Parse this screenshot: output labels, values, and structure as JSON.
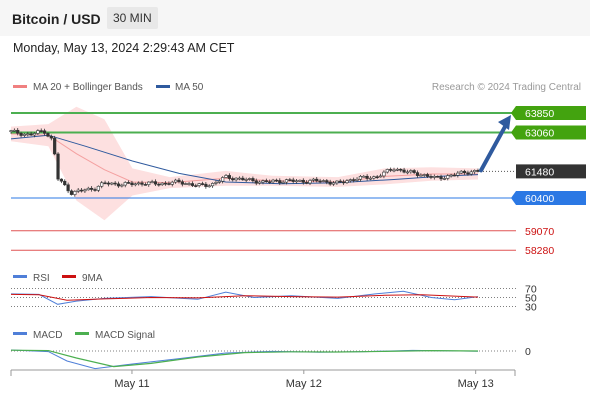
{
  "header": {
    "title": "Bitcoin / USD",
    "interval": "30 MIN",
    "datetime": "Monday, May 13, 2024 2:29:43 AM CET"
  },
  "legend": {
    "items": [
      {
        "label": "MA 20 + Bollinger Bands",
        "color": "#f08080"
      },
      {
        "label": "MA 50",
        "color": "#2f5a9e"
      }
    ],
    "credit": "Research © 2024 Trading Central"
  },
  "colors": {
    "green_level": "#4caf50",
    "green_label": "#43a30f",
    "blue_level": "#2b78e4",
    "red_level": "#e05555",
    "red_text": "#cc1111",
    "price_line": "#333333",
    "ma50": "#2f5a9e",
    "bollinger_fill": "#fde0e0",
    "arrow": "#2f5a9e",
    "rsi": "#4f7fd8",
    "rsi_ma": "#cc1111",
    "macd": "#4f7fd8",
    "macd_signal": "#4caf50"
  },
  "chart_data": [
    {
      "type": "candlestick",
      "title": "Bitcoin / USD",
      "interval": "30 MIN",
      "x_tick_labels": [
        "May 11",
        "May 12",
        "May 13"
      ],
      "ylim": [
        57000,
        65500
      ],
      "levels": [
        {
          "value": 63850,
          "label": "63850",
          "kind": "resistance",
          "color": "green"
        },
        {
          "value": 63060,
          "label": "63060",
          "kind": "resistance",
          "color": "green"
        },
        {
          "value": 61480,
          "label": "61480",
          "kind": "last",
          "color": "dark"
        },
        {
          "value": 60400,
          "label": "60400",
          "kind": "support",
          "color": "blue"
        },
        {
          "value": 59070,
          "label": "59070",
          "kind": "support",
          "color": "red"
        },
        {
          "value": 58280,
          "label": "58280",
          "kind": "support",
          "color": "red"
        }
      ],
      "close_series": [
        {
          "t": 0.0,
          "v": 63100
        },
        {
          "t": 0.04,
          "v": 62950
        },
        {
          "t": 0.07,
          "v": 63150
        },
        {
          "t": 0.09,
          "v": 62700
        },
        {
          "t": 0.1,
          "v": 61200
        },
        {
          "t": 0.115,
          "v": 60900
        },
        {
          "t": 0.13,
          "v": 60600
        },
        {
          "t": 0.15,
          "v": 60700
        },
        {
          "t": 0.18,
          "v": 60800
        },
        {
          "t": 0.2,
          "v": 61000
        },
        {
          "t": 0.24,
          "v": 60950
        },
        {
          "t": 0.28,
          "v": 61000
        },
        {
          "t": 0.32,
          "v": 60980
        },
        {
          "t": 0.36,
          "v": 61050
        },
        {
          "t": 0.4,
          "v": 60900
        },
        {
          "t": 0.43,
          "v": 60950
        },
        {
          "t": 0.46,
          "v": 61250
        },
        {
          "t": 0.5,
          "v": 61150
        },
        {
          "t": 0.54,
          "v": 61050
        },
        {
          "t": 0.58,
          "v": 61100
        },
        {
          "t": 0.62,
          "v": 61080
        },
        {
          "t": 0.66,
          "v": 61100
        },
        {
          "t": 0.7,
          "v": 61000
        },
        {
          "t": 0.74,
          "v": 61200
        },
        {
          "t": 0.78,
          "v": 61250
        },
        {
          "t": 0.82,
          "v": 61600
        },
        {
          "t": 0.85,
          "v": 61450
        },
        {
          "t": 0.88,
          "v": 61350
        },
        {
          "t": 0.91,
          "v": 61200
        },
        {
          "t": 0.94,
          "v": 61300
        },
        {
          "t": 0.97,
          "v": 61450
        },
        {
          "t": 1.0,
          "v": 61480
        }
      ],
      "ma50_series": [
        {
          "t": 0.0,
          "v": 62800
        },
        {
          "t": 0.08,
          "v": 62950
        },
        {
          "t": 0.16,
          "v": 62500
        },
        {
          "t": 0.26,
          "v": 61900
        },
        {
          "t": 0.36,
          "v": 61400
        },
        {
          "t": 0.46,
          "v": 61050
        },
        {
          "t": 0.58,
          "v": 60980
        },
        {
          "t": 0.7,
          "v": 61020
        },
        {
          "t": 0.82,
          "v": 61150
        },
        {
          "t": 0.92,
          "v": 61280
        },
        {
          "t": 1.0,
          "v": 61350
        }
      ],
      "bollinger_upper": [
        {
          "t": 0.0,
          "v": 63300
        },
        {
          "t": 0.08,
          "v": 63400
        },
        {
          "t": 0.14,
          "v": 64100
        },
        {
          "t": 0.2,
          "v": 63600
        },
        {
          "t": 0.26,
          "v": 61600
        },
        {
          "t": 0.34,
          "v": 61250
        },
        {
          "t": 0.46,
          "v": 61500
        },
        {
          "t": 0.56,
          "v": 61300
        },
        {
          "t": 0.7,
          "v": 61250
        },
        {
          "t": 0.8,
          "v": 61600
        },
        {
          "t": 0.9,
          "v": 61650
        },
        {
          "t": 1.0,
          "v": 61600
        }
      ],
      "bollinger_lower": [
        {
          "t": 0.0,
          "v": 62700
        },
        {
          "t": 0.08,
          "v": 62500
        },
        {
          "t": 0.14,
          "v": 60300
        },
        {
          "t": 0.2,
          "v": 59500
        },
        {
          "t": 0.26,
          "v": 60500
        },
        {
          "t": 0.34,
          "v": 60800
        },
        {
          "t": 0.46,
          "v": 60900
        },
        {
          "t": 0.56,
          "v": 60900
        },
        {
          "t": 0.7,
          "v": 60850
        },
        {
          "t": 0.8,
          "v": 60950
        },
        {
          "t": 0.9,
          "v": 61100
        },
        {
          "t": 1.0,
          "v": 61150
        }
      ],
      "forecast_arrow": {
        "from": 61480,
        "to": 63850
      }
    },
    {
      "type": "line",
      "title": "RSI",
      "legend": [
        "RSI",
        "9MA"
      ],
      "levels": [
        70,
        50,
        30
      ],
      "ylim": [
        0,
        100
      ],
      "rsi": [
        {
          "t": 0.0,
          "v": 58
        },
        {
          "t": 0.06,
          "v": 57
        },
        {
          "t": 0.1,
          "v": 35
        },
        {
          "t": 0.14,
          "v": 42
        },
        {
          "t": 0.2,
          "v": 48
        },
        {
          "t": 0.3,
          "v": 52
        },
        {
          "t": 0.4,
          "v": 46
        },
        {
          "t": 0.46,
          "v": 62
        },
        {
          "t": 0.52,
          "v": 50
        },
        {
          "t": 0.6,
          "v": 54
        },
        {
          "t": 0.7,
          "v": 48
        },
        {
          "t": 0.78,
          "v": 58
        },
        {
          "t": 0.84,
          "v": 64
        },
        {
          "t": 0.9,
          "v": 50
        },
        {
          "t": 0.95,
          "v": 45
        },
        {
          "t": 1.0,
          "v": 52
        }
      ],
      "ma9": [
        {
          "t": 0.0,
          "v": 57
        },
        {
          "t": 0.06,
          "v": 56
        },
        {
          "t": 0.12,
          "v": 44
        },
        {
          "t": 0.2,
          "v": 47
        },
        {
          "t": 0.3,
          "v": 50
        },
        {
          "t": 0.4,
          "v": 49
        },
        {
          "t": 0.5,
          "v": 54
        },
        {
          "t": 0.6,
          "v": 52
        },
        {
          "t": 0.7,
          "v": 51
        },
        {
          "t": 0.8,
          "v": 55
        },
        {
          "t": 0.88,
          "v": 56
        },
        {
          "t": 1.0,
          "v": 51
        }
      ]
    },
    {
      "type": "line",
      "title": "MACD",
      "legend": [
        "MACD",
        "MACD Signal"
      ],
      "levels": [
        0
      ],
      "ylim": [
        -1000,
        300
      ],
      "macd": [
        {
          "t": 0.0,
          "v": 50
        },
        {
          "t": 0.08,
          "v": -30
        },
        {
          "t": 0.12,
          "v": -500
        },
        {
          "t": 0.18,
          "v": -880
        },
        {
          "t": 0.26,
          "v": -650
        },
        {
          "t": 0.36,
          "v": -380
        },
        {
          "t": 0.46,
          "v": -100
        },
        {
          "t": 0.56,
          "v": -20
        },
        {
          "t": 0.66,
          "v": -60
        },
        {
          "t": 0.76,
          "v": -30
        },
        {
          "t": 0.86,
          "v": 30
        },
        {
          "t": 1.0,
          "v": -10
        }
      ],
      "signal": [
        {
          "t": 0.0,
          "v": 40
        },
        {
          "t": 0.08,
          "v": 20
        },
        {
          "t": 0.14,
          "v": -350
        },
        {
          "t": 0.22,
          "v": -780
        },
        {
          "t": 0.3,
          "v": -620
        },
        {
          "t": 0.4,
          "v": -300
        },
        {
          "t": 0.5,
          "v": -80
        },
        {
          "t": 0.6,
          "v": -40
        },
        {
          "t": 0.7,
          "v": -50
        },
        {
          "t": 0.8,
          "v": -20
        },
        {
          "t": 0.9,
          "v": 20
        },
        {
          "t": 1.0,
          "v": 0
        }
      ]
    }
  ]
}
